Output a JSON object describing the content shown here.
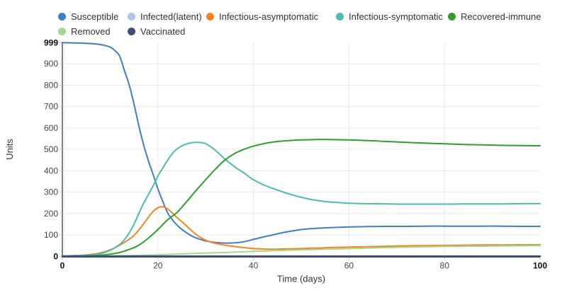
{
  "colors": {
    "grid": "#e8e8e8",
    "axis": "#4a4a4a",
    "tick": "#c8c8c8",
    "tick_label": "#444444",
    "tick_label_strong": "#0d0d0d",
    "axis_title": "#333333"
  },
  "chart_data": {
    "type": "line",
    "title": "",
    "xlabel": "Time (days)",
    "ylabel": "Units",
    "xlim": [
      0,
      100
    ],
    "ylim": [
      0,
      999
    ],
    "x_ticks": [
      0,
      20,
      40,
      60,
      80,
      100
    ],
    "y_ticks": [
      0,
      100,
      200,
      300,
      400,
      500,
      600,
      700,
      800,
      900,
      999
    ],
    "grid": true,
    "legend_position": "top-left",
    "series": [
      {
        "name": "Susceptible",
        "color": "#3e7fc1",
        "points": [
          [
            0,
            999
          ],
          [
            2,
            998
          ],
          [
            4,
            997
          ],
          [
            6,
            995
          ],
          [
            8,
            990
          ],
          [
            10,
            978
          ],
          [
            11,
            962
          ],
          [
            12,
            935
          ],
          [
            13,
            868
          ],
          [
            14,
            800
          ],
          [
            15,
            712
          ],
          [
            16,
            612
          ],
          [
            17,
            522
          ],
          [
            18,
            448
          ],
          [
            19,
            382
          ],
          [
            20,
            315
          ],
          [
            21,
            258
          ],
          [
            22,
            205
          ],
          [
            23,
            172
          ],
          [
            24,
            146
          ],
          [
            25,
            126
          ],
          [
            26,
            110
          ],
          [
            27,
            96
          ],
          [
            28,
            86
          ],
          [
            29,
            78
          ],
          [
            30,
            72
          ],
          [
            31,
            68
          ],
          [
            32,
            65
          ],
          [
            33,
            63
          ],
          [
            34,
            62
          ],
          [
            35,
            62
          ],
          [
            36,
            63
          ],
          [
            37,
            65
          ],
          [
            38,
            68
          ],
          [
            39,
            73
          ],
          [
            40,
            79
          ],
          [
            42,
            90
          ],
          [
            44,
            100
          ],
          [
            46,
            110
          ],
          [
            48,
            118
          ],
          [
            50,
            125
          ],
          [
            52,
            129
          ],
          [
            54,
            132
          ],
          [
            56,
            134
          ],
          [
            58,
            136
          ],
          [
            60,
            137
          ],
          [
            64,
            139
          ],
          [
            68,
            140
          ],
          [
            72,
            140
          ],
          [
            76,
            141
          ],
          [
            80,
            141
          ],
          [
            84,
            141
          ],
          [
            88,
            141
          ],
          [
            92,
            141
          ],
          [
            96,
            140
          ],
          [
            100,
            140
          ]
        ]
      },
      {
        "name": "Infected(latent)",
        "color": "#aec6e8",
        "points": [
          [
            0,
            0
          ],
          [
            25,
            0
          ],
          [
            50,
            0
          ],
          [
            75,
            0
          ],
          [
            100,
            0
          ]
        ]
      },
      {
        "name": "Infectious-asymptomatic",
        "color": "#f8821f",
        "points": [
          [
            0,
            2
          ],
          [
            4,
            5
          ],
          [
            6,
            9
          ],
          [
            8,
            16
          ],
          [
            10,
            30
          ],
          [
            12,
            52
          ],
          [
            14,
            80
          ],
          [
            15,
            98
          ],
          [
            16,
            122
          ],
          [
            17,
            152
          ],
          [
            18,
            182
          ],
          [
            19,
            210
          ],
          [
            20,
            227
          ],
          [
            21,
            232
          ],
          [
            22,
            222
          ],
          [
            23,
            203
          ],
          [
            24,
            181
          ],
          [
            25,
            162
          ],
          [
            26,
            142
          ],
          [
            27,
            121
          ],
          [
            28,
            102
          ],
          [
            29,
            87
          ],
          [
            30,
            75
          ],
          [
            31,
            67
          ],
          [
            32,
            61
          ],
          [
            33,
            56
          ],
          [
            34,
            52
          ],
          [
            35,
            49
          ],
          [
            36,
            46
          ],
          [
            37,
            43
          ],
          [
            38,
            41
          ],
          [
            39,
            38
          ],
          [
            40,
            36
          ],
          [
            42,
            34
          ],
          [
            44,
            33
          ],
          [
            46,
            34
          ],
          [
            48,
            35
          ],
          [
            50,
            36
          ],
          [
            52,
            38
          ],
          [
            54,
            39
          ],
          [
            56,
            41
          ],
          [
            58,
            42
          ],
          [
            60,
            43
          ],
          [
            64,
            45
          ],
          [
            68,
            47
          ],
          [
            72,
            49
          ],
          [
            76,
            50
          ],
          [
            80,
            51
          ],
          [
            84,
            52
          ],
          [
            88,
            53
          ],
          [
            92,
            53
          ],
          [
            96,
            54
          ],
          [
            100,
            54
          ]
        ]
      },
      {
        "name": "Infectious-symptomatic",
        "color": "#49bcb4",
        "points": [
          [
            0,
            2
          ],
          [
            4,
            4
          ],
          [
            6,
            7
          ],
          [
            8,
            12
          ],
          [
            10,
            28
          ],
          [
            12,
            55
          ],
          [
            13,
            78
          ],
          [
            14,
            110
          ],
          [
            15,
            150
          ],
          [
            16,
            200
          ],
          [
            17,
            248
          ],
          [
            18,
            288
          ],
          [
            19,
            330
          ],
          [
            20,
            375
          ],
          [
            21,
            412
          ],
          [
            22,
            448
          ],
          [
            23,
            480
          ],
          [
            24,
            502
          ],
          [
            25,
            516
          ],
          [
            26,
            525
          ],
          [
            27,
            531
          ],
          [
            28,
            533
          ],
          [
            29,
            532
          ],
          [
            30,
            527
          ],
          [
            31,
            513
          ],
          [
            32,
            496
          ],
          [
            33,
            476
          ],
          [
            34,
            455
          ],
          [
            35,
            437
          ],
          [
            36,
            420
          ],
          [
            37,
            404
          ],
          [
            38,
            390
          ],
          [
            39,
            373
          ],
          [
            40,
            358
          ],
          [
            42,
            335
          ],
          [
            44,
            318
          ],
          [
            46,
            302
          ],
          [
            48,
            288
          ],
          [
            50,
            276
          ],
          [
            52,
            266
          ],
          [
            54,
            259
          ],
          [
            56,
            254
          ],
          [
            58,
            251
          ],
          [
            60,
            248
          ],
          [
            64,
            246
          ],
          [
            68,
            245
          ],
          [
            72,
            244
          ],
          [
            76,
            244
          ],
          [
            80,
            244
          ],
          [
            84,
            245
          ],
          [
            88,
            245
          ],
          [
            92,
            245
          ],
          [
            96,
            246
          ],
          [
            100,
            246
          ]
        ]
      },
      {
        "name": "Recovered-immune",
        "color": "#2ca02c",
        "points": [
          [
            0,
            0
          ],
          [
            4,
            1
          ],
          [
            6,
            3
          ],
          [
            8,
            5
          ],
          [
            10,
            10
          ],
          [
            12,
            18
          ],
          [
            14,
            32
          ],
          [
            16,
            52
          ],
          [
            18,
            85
          ],
          [
            20,
            125
          ],
          [
            22,
            170
          ],
          [
            24,
            205
          ],
          [
            26,
            255
          ],
          [
            28,
            308
          ],
          [
            30,
            358
          ],
          [
            32,
            407
          ],
          [
            34,
            450
          ],
          [
            36,
            480
          ],
          [
            38,
            500
          ],
          [
            40,
            515
          ],
          [
            42,
            526
          ],
          [
            44,
            534
          ],
          [
            46,
            539
          ],
          [
            48,
            542
          ],
          [
            50,
            544
          ],
          [
            53,
            546
          ],
          [
            56,
            546
          ],
          [
            60,
            544
          ],
          [
            64,
            541
          ],
          [
            68,
            537
          ],
          [
            72,
            533
          ],
          [
            76,
            529
          ],
          [
            80,
            526
          ],
          [
            84,
            523
          ],
          [
            88,
            521
          ],
          [
            92,
            519
          ],
          [
            96,
            518
          ],
          [
            100,
            517
          ]
        ]
      },
      {
        "name": "Removed",
        "color": "#9edb8f",
        "points": [
          [
            0,
            0
          ],
          [
            5,
            1
          ],
          [
            10,
            2
          ],
          [
            15,
            4
          ],
          [
            20,
            7
          ],
          [
            25,
            11
          ],
          [
            30,
            15
          ],
          [
            35,
            19
          ],
          [
            40,
            23
          ],
          [
            45,
            27
          ],
          [
            50,
            30
          ],
          [
            55,
            33
          ],
          [
            60,
            36
          ],
          [
            65,
            39
          ],
          [
            70,
            42
          ],
          [
            75,
            44
          ],
          [
            80,
            46
          ],
          [
            85,
            47
          ],
          [
            90,
            48
          ],
          [
            95,
            49
          ],
          [
            100,
            50
          ]
        ]
      },
      {
        "name": "Vaccinated",
        "color": "#3e4e7e",
        "points": [
          [
            0,
            0
          ],
          [
            25,
            0
          ],
          [
            50,
            0
          ],
          [
            75,
            0
          ],
          [
            100,
            0
          ]
        ]
      }
    ]
  }
}
